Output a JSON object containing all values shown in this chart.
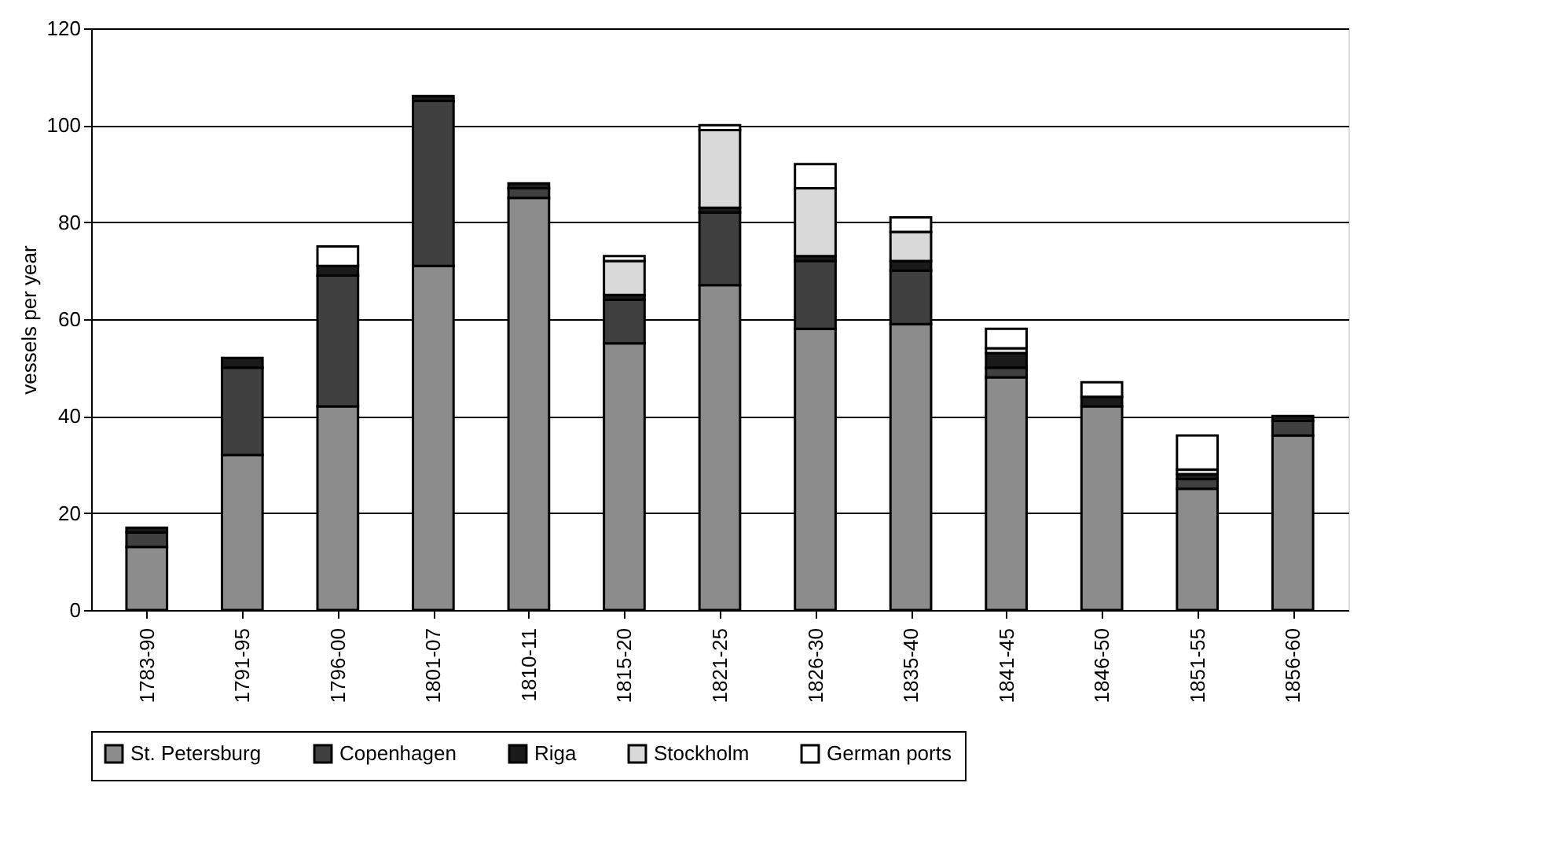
{
  "chart_data": {
    "type": "bar",
    "stacked": true,
    "ylabel": "vessels per year",
    "categories": [
      "1783-90",
      "1791-95",
      "1796-00",
      "1801-07",
      "1810-11",
      "1815-20",
      "1821-25",
      "1826-30",
      "1835-40",
      "1841-45",
      "1846-50",
      "1851-55",
      "1856-60"
    ],
    "series": [
      {
        "name": "St. Petersburg",
        "color": "#8c8c8c",
        "values": [
          13,
          32,
          42,
          71,
          85,
          55,
          67,
          58,
          59,
          48,
          42,
          25,
          36
        ]
      },
      {
        "name": "Copenhagen",
        "color": "#404040",
        "values": [
          3,
          18,
          27,
          34,
          2,
          9,
          15,
          14,
          11,
          2,
          0,
          2,
          3
        ]
      },
      {
        "name": "Riga",
        "color": "#1a1a1a",
        "values": [
          1,
          2,
          2,
          1,
          1,
          1,
          1,
          1,
          2,
          3,
          2,
          1,
          1
        ]
      },
      {
        "name": "Stockholm",
        "color": "#d9d9d9",
        "values": [
          0,
          0,
          0,
          0,
          0,
          7,
          16,
          14,
          6,
          1,
          0,
          1,
          0
        ]
      },
      {
        "name": "German ports",
        "color": "#ffffff",
        "values": [
          0,
          0,
          4,
          0,
          0,
          1,
          1,
          5,
          3,
          4,
          3,
          7,
          0
        ]
      }
    ],
    "ylim": [
      0,
      120
    ],
    "yticks": [
      0,
      20,
      40,
      60,
      80,
      100,
      120
    ],
    "grid": "y",
    "legend": "bottom"
  }
}
